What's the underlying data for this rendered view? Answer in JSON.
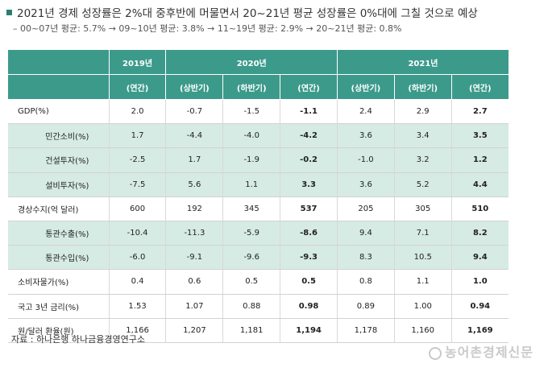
{
  "headline": "2021년 경제 성장률은 2%대 중후반에 머물면서 20~21년 평균 성장률은 0%대에 그칠 것으로 예상",
  "subline": "– 00~07년 평균: 5.7% → 09~10년 평균: 3.8% → 11~19년 평균: 2.9% → 20~21년 평균: 0.8%",
  "table": {
    "years": [
      "2019년",
      "2020년",
      "2021년"
    ],
    "periods": [
      "(연간)",
      "(상반기)",
      "(하반기)",
      "(연간)",
      "(상반기)",
      "(하반기)",
      "(연간)"
    ],
    "rows": [
      {
        "label": "GDP(%)",
        "values": [
          "2.0",
          "-0.7",
          "-1.5",
          "-1.1",
          "2.4",
          "2.9",
          "2.7"
        ]
      },
      {
        "label": "민간소비(%)",
        "values": [
          "1.7",
          "-4.4",
          "-4.0",
          "-4.2",
          "3.6",
          "3.4",
          "3.5"
        ]
      },
      {
        "label": "건설투자(%)",
        "values": [
          "-2.5",
          "1.7",
          "-1.9",
          "-0.2",
          "-1.0",
          "3.2",
          "1.2"
        ]
      },
      {
        "label": "설비투자(%)",
        "values": [
          "-7.5",
          "5.6",
          "1.1",
          "3.3",
          "3.6",
          "5.2",
          "4.4"
        ]
      },
      {
        "label": "경상수지(억 달러)",
        "values": [
          "600",
          "192",
          "345",
          "537",
          "205",
          "305",
          "510"
        ]
      },
      {
        "label": "통관수출(%)",
        "values": [
          "-10.4",
          "-11.3",
          "-5.9",
          "-8.6",
          "9.4",
          "7.1",
          "8.2"
        ]
      },
      {
        "label": "통관수입(%)",
        "values": [
          "-6.0",
          "-9.1",
          "-9.6",
          "-9.3",
          "8.3",
          "10.5",
          "9.4"
        ]
      },
      {
        "label": "소비자물가(%)",
        "values": [
          "0.4",
          "0.6",
          "0.5",
          "0.5",
          "0.8",
          "1.1",
          "1.0"
        ]
      },
      {
        "label": "국고 3년 금리(%)",
        "values": [
          "1.53",
          "1.07",
          "0.88",
          "0.98",
          "0.89",
          "1.00",
          "0.94"
        ]
      },
      {
        "label": "원/달러 환율(원)",
        "values": [
          "1,166",
          "1,207",
          "1,181",
          "1,194",
          "1,178",
          "1,160",
          "1,169"
        ]
      }
    ]
  },
  "source": "자료 : 하나은행 하나금융경영연구소",
  "watermark": "농어촌경제신문"
}
